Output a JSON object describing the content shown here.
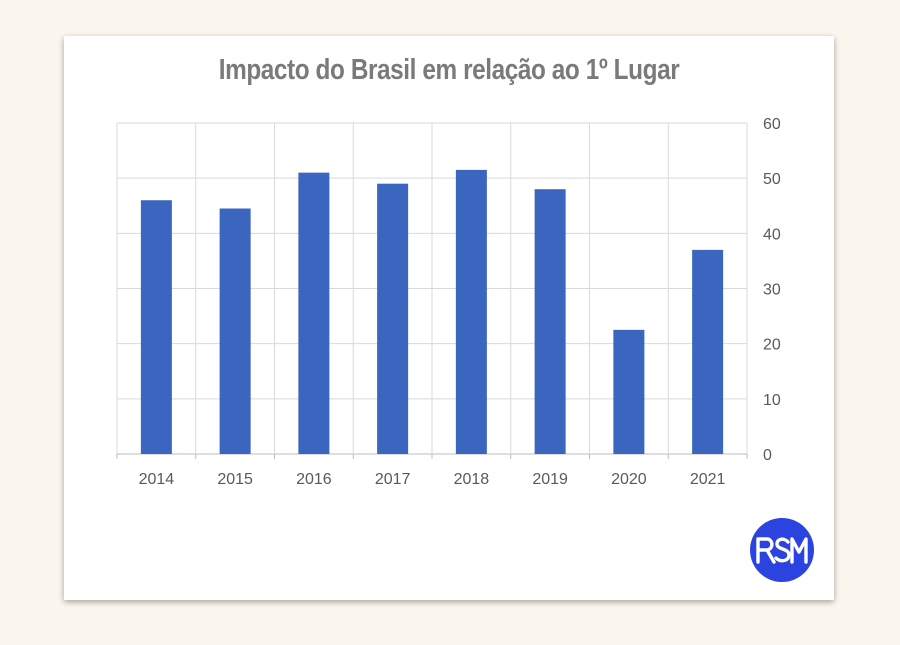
{
  "chart_data": {
    "type": "bar",
    "title": "Impacto do Brasil em relação ao 1º Lugar",
    "categories": [
      "2014",
      "2015",
      "2016",
      "2017",
      "2018",
      "2019",
      "2020",
      "2021"
    ],
    "values": [
      46,
      44.5,
      51,
      49,
      51.5,
      48,
      22.5,
      37
    ],
    "ylim": [
      0,
      60
    ],
    "yticks": [
      "0",
      "10",
      "20",
      "30",
      "40",
      "50",
      "60"
    ],
    "y_axis_side": "right",
    "grid": true,
    "legend": "none",
    "bar_color": "#3a66c0"
  },
  "logo": {
    "text": "RSM",
    "color": "#2b44e0"
  }
}
